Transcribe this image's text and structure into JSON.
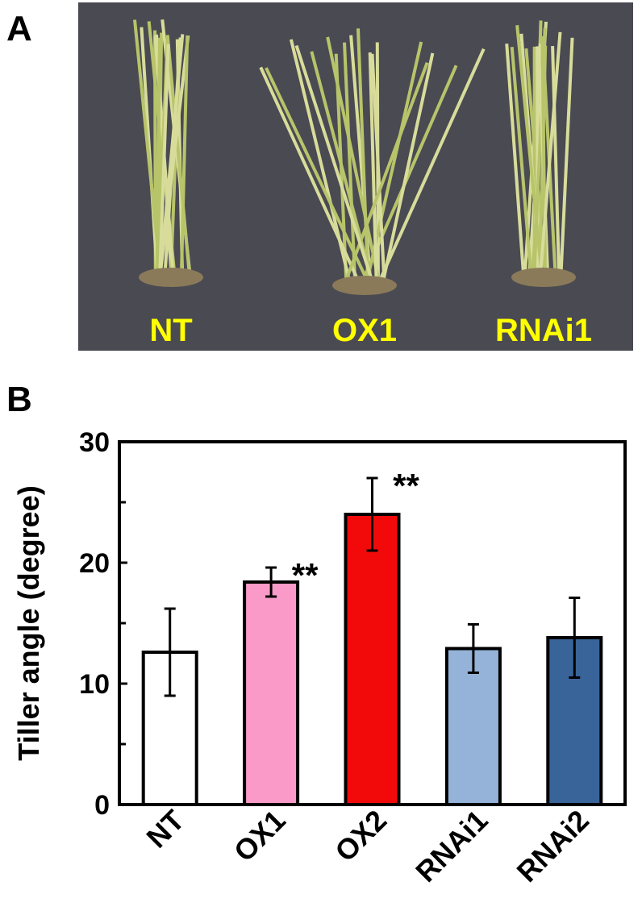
{
  "panels": [
    "A",
    "B"
  ],
  "photo_labels": [
    "NT",
    "OX1",
    "RNAi1"
  ],
  "chart_data": {
    "type": "bar",
    "ylabel": "Tiller angle (degree)",
    "categories": [
      "NT",
      "OX1",
      "OX2",
      "RNAi1",
      "RNAi2"
    ],
    "values": [
      12.6,
      18.4,
      24.0,
      12.9,
      13.8
    ],
    "errors": [
      3.6,
      1.2,
      3.0,
      2.0,
      3.3
    ],
    "colors": [
      "#ffffff",
      "#f99ac8",
      "#f20a0a",
      "#95b3d9",
      "#39649a"
    ],
    "annotations": [
      null,
      "**",
      "**",
      null,
      null
    ],
    "ylim": [
      0,
      30
    ],
    "yticks": [
      0,
      10,
      20,
      30
    ],
    "minor_yticks": [
      5,
      15,
      25
    ]
  }
}
